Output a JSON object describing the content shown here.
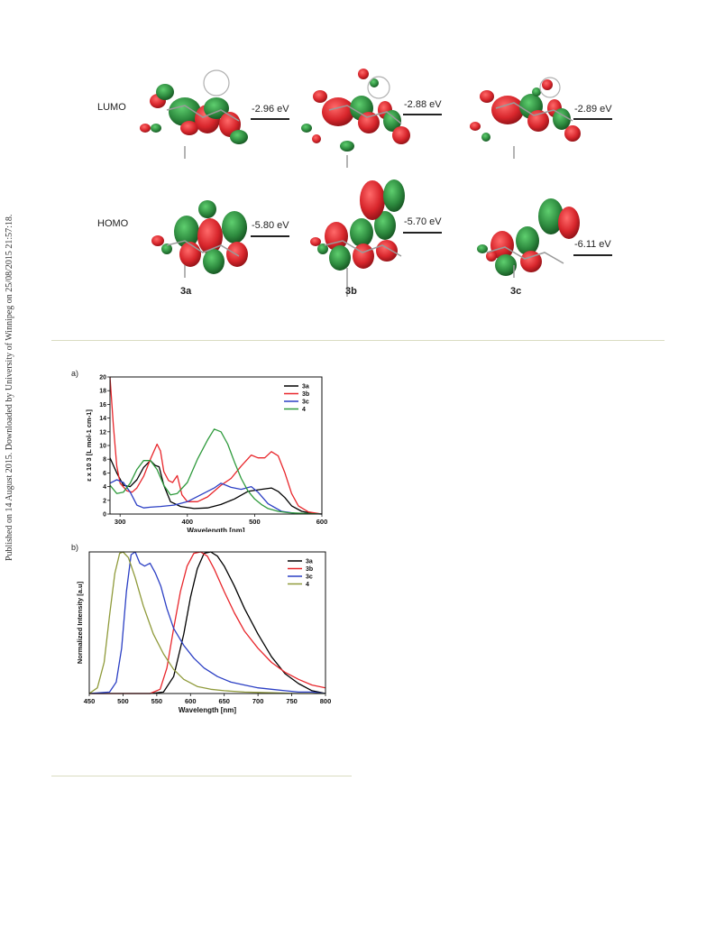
{
  "side_note": "Published on 14 August 2015. Downloaded by University of Winnipeg on 25/08/2015 21:57:18.",
  "orbitals": {
    "lumo_label": "LUMO",
    "homo_label": "HOMO",
    "compounds": [
      "3a",
      "3b",
      "3c"
    ],
    "lumo_energies": [
      "-2.96 eV",
      "-2.88 eV",
      "-2.89 eV"
    ],
    "homo_energies": [
      "-5.80 eV",
      "-5.70 eV",
      "-6.11 eV"
    ]
  },
  "colors": {
    "lobe_red": "#d8262c",
    "lobe_green": "#2e8b3f",
    "rule": "#d9dcc1",
    "3a": "#000000",
    "3b": "#e8262b",
    "3c": "#2b3fc4",
    "4_abs": "#2e9a3c",
    "4_em": "#8f9a3a"
  },
  "chart_data": [
    {
      "type": "line",
      "panel_label": "a)",
      "xlabel": "Wavelength [nm]",
      "ylabel": "ε x 10 3 [L mol-1 cm-1]",
      "xlim": [
        285,
        600
      ],
      "ylim": [
        0,
        20
      ],
      "xticks": [
        300,
        400,
        500,
        600
      ],
      "yticks": [
        0,
        2,
        4,
        6,
        8,
        10,
        12,
        14,
        16,
        18,
        20
      ],
      "legend_position": "top-right",
      "series": [
        {
          "name": "3a",
          "x": [
            285,
            295,
            305,
            315,
            325,
            335,
            345,
            352,
            358,
            365,
            375,
            390,
            410,
            430,
            450,
            470,
            490,
            510,
            525,
            535,
            545,
            555,
            570,
            585,
            600
          ],
          "y": [
            8.2,
            6.0,
            4.2,
            4.0,
            5.0,
            6.8,
            7.8,
            7.1,
            6.9,
            4.2,
            1.8,
            1.1,
            0.8,
            0.9,
            1.4,
            2.2,
            3.3,
            3.6,
            3.8,
            3.3,
            2.4,
            1.2,
            0.4,
            0.1,
            0
          ]
        },
        {
          "name": "3b",
          "x": [
            285,
            290,
            295,
            300,
            310,
            318,
            325,
            335,
            345,
            355,
            360,
            365,
            372,
            378,
            385,
            392,
            400,
            415,
            430,
            450,
            465,
            480,
            495,
            505,
            515,
            525,
            535,
            545,
            555,
            565,
            580,
            600
          ],
          "y": [
            20,
            13,
            7,
            4.5,
            3.4,
            3.2,
            3.8,
            5.5,
            8.0,
            10.2,
            9.2,
            6.2,
            4.9,
            4.6,
            5.6,
            2.8,
            1.8,
            1.8,
            2.5,
            4.2,
            5.2,
            7.0,
            8.6,
            8.2,
            8.2,
            9.1,
            8.5,
            6.0,
            3.0,
            1.2,
            0.3,
            0
          ]
        },
        {
          "name": "3c",
          "x": [
            285,
            295,
            305,
            315,
            325,
            335,
            345,
            360,
            380,
            400,
            420,
            440,
            450,
            465,
            480,
            495,
            505,
            520,
            540,
            560,
            600
          ],
          "y": [
            4.5,
            5.0,
            4.6,
            3.2,
            1.3,
            0.9,
            1.0,
            1.1,
            1.3,
            1.8,
            2.8,
            3.8,
            4.5,
            3.9,
            3.6,
            4.0,
            3.2,
            1.5,
            0.4,
            0.1,
            0
          ]
        },
        {
          "name": "4",
          "x": [
            285,
            295,
            305,
            315,
            325,
            335,
            345,
            355,
            365,
            375,
            385,
            400,
            415,
            430,
            440,
            450,
            460,
            470,
            480,
            490,
            500,
            510,
            520,
            535,
            550,
            570,
            600
          ],
          "y": [
            4.2,
            3.0,
            3.2,
            4.5,
            6.5,
            7.8,
            7.8,
            6.5,
            4.2,
            2.8,
            3.0,
            4.6,
            8.0,
            10.8,
            12.4,
            12.0,
            10.2,
            7.6,
            5.2,
            3.4,
            2.2,
            1.4,
            0.8,
            0.4,
            0.2,
            0.1,
            0
          ]
        }
      ]
    },
    {
      "type": "line",
      "panel_label": "b)",
      "xlabel": "Wavelength [nm]",
      "ylabel": "Normalized Intensity [a.u]",
      "xlim": [
        450,
        800
      ],
      "ylim": [
        0,
        1
      ],
      "xticks": [
        450,
        500,
        550,
        600,
        650,
        700,
        750,
        800
      ],
      "legend_position": "top-right",
      "series": [
        {
          "name": "3a",
          "x": [
            450,
            540,
            560,
            575,
            590,
            600,
            610,
            620,
            630,
            640,
            650,
            665,
            680,
            700,
            720,
            740,
            760,
            780,
            790,
            800
          ],
          "y": [
            0,
            0,
            0.01,
            0.12,
            0.42,
            0.68,
            0.88,
            0.99,
            1.0,
            0.97,
            0.9,
            0.76,
            0.6,
            0.42,
            0.26,
            0.14,
            0.07,
            0.02,
            0.01,
            0
          ]
        },
        {
          "name": "3b",
          "x": [
            450,
            540,
            555,
            565,
            575,
            585,
            595,
            605,
            615,
            625,
            635,
            650,
            665,
            680,
            700,
            720,
            740,
            760,
            780,
            800
          ],
          "y": [
            0,
            0,
            0.03,
            0.18,
            0.46,
            0.72,
            0.9,
            0.99,
            1.0,
            0.97,
            0.88,
            0.72,
            0.57,
            0.44,
            0.32,
            0.22,
            0.15,
            0.1,
            0.06,
            0.04
          ]
        },
        {
          "name": "3c",
          "x": [
            450,
            480,
            490,
            498,
            505,
            512,
            518,
            525,
            532,
            540,
            548,
            556,
            565,
            575,
            590,
            605,
            620,
            640,
            660,
            680,
            700,
            720,
            740,
            760,
            780,
            800
          ],
          "y": [
            0,
            0.01,
            0.08,
            0.32,
            0.72,
            0.98,
            1.0,
            0.92,
            0.9,
            0.92,
            0.85,
            0.76,
            0.6,
            0.46,
            0.34,
            0.25,
            0.18,
            0.12,
            0.08,
            0.06,
            0.04,
            0.03,
            0.02,
            0.01,
            0.01,
            0
          ]
        },
        {
          "name": "4",
          "x": [
            450,
            462,
            472,
            480,
            488,
            495,
            500,
            508,
            518,
            530,
            545,
            560,
            575,
            590,
            610,
            630,
            650,
            680,
            720,
            760,
            800
          ],
          "y": [
            0,
            0.04,
            0.22,
            0.55,
            0.85,
            0.99,
            1.0,
            0.96,
            0.82,
            0.62,
            0.42,
            0.28,
            0.17,
            0.1,
            0.05,
            0.03,
            0.02,
            0.01,
            0.005,
            0,
            0
          ]
        }
      ]
    }
  ]
}
